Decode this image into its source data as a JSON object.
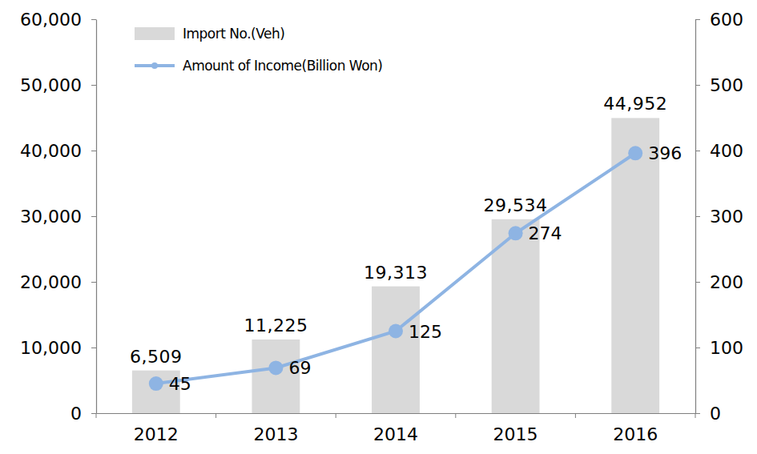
{
  "chart_data": {
    "type": "bar",
    "categories": [
      "2012",
      "2013",
      "2014",
      "2015",
      "2016"
    ],
    "series": [
      {
        "name": "Import No.(Veh)",
        "type": "bar",
        "color": "#d9d9d9",
        "values": [
          6509,
          11225,
          19313,
          29534,
          44952
        ],
        "value_labels": [
          "6,509",
          "11,225",
          "19,313",
          "29,534",
          "44,952"
        ]
      },
      {
        "name": "Amount of Income(Billion Won)",
        "type": "line",
        "axis": "y2",
        "color": "#8eb4e3",
        "marker": "circle",
        "values": [
          45,
          69,
          125,
          274,
          396
        ]
      }
    ],
    "ylim": [
      0,
      60000
    ],
    "yticks": [
      0,
      {
        "value": 10000,
        "label": "10,000"
      },
      {
        "value": 20000,
        "label": "20,000"
      },
      {
        "value": 30000,
        "label": "30,000"
      },
      {
        "value": 40000,
        "label": "40,000"
      },
      {
        "value": 50000,
        "label": "50,000"
      },
      {
        "value": 60000,
        "label": "60,000"
      }
    ],
    "y2lim": [
      0,
      600
    ],
    "y2ticks": [
      0,
      100,
      200,
      300,
      400,
      500,
      600
    ],
    "data_labels": true,
    "legend": "top-left",
    "grid": false
  }
}
